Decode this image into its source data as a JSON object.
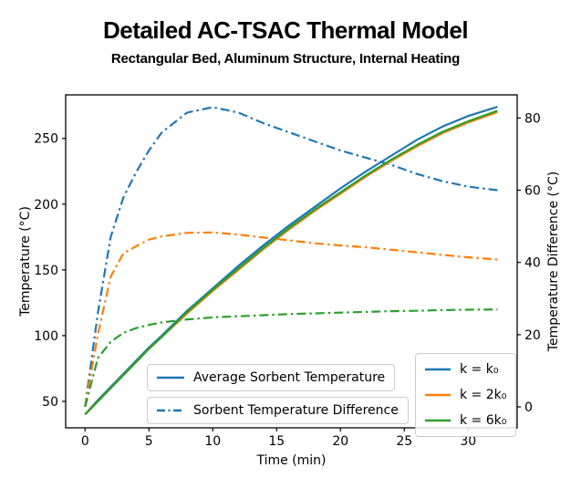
{
  "title": "Detailed AC-TSAC Thermal Model",
  "subtitle": "Rectangular Bed, Aluminum Structure, Internal Heating",
  "colors": {
    "k0": "#1f77b4",
    "k2": "#ff7f0e",
    "k6": "#2ca02c",
    "legend_edge": "#cccccc",
    "axis": "#000000"
  },
  "legend_style": {
    "entries": [
      {
        "label": "Average Sorbent Temperature",
        "line_style": "solid",
        "color": "#1f77b4"
      },
      {
        "label": "Sorbent Temperature Difference",
        "line_style": "dashdot",
        "color": "#1f77b4"
      }
    ]
  },
  "legend_k": {
    "entries": [
      {
        "label": "k = k₀",
        "color": "#1f77b4"
      },
      {
        "label": "k = 2k₀",
        "color": "#ff7f0e"
      },
      {
        "label": "k = 6k₀",
        "color": "#2ca02c"
      }
    ]
  },
  "chart_data": {
    "type": "line",
    "title": "Detailed AC-TSAC Thermal Model",
    "subtitle": "Rectangular Bed, Aluminum Structure, Internal Heating",
    "xlabel": "Time (min)",
    "ylabel_left": "Temperature (°C)",
    "ylabel_right": "Temperature Difference (°C)",
    "xticks": [
      0,
      5,
      10,
      15,
      20,
      25,
      30
    ],
    "yticks_left": [
      50,
      100,
      150,
      200,
      250
    ],
    "yticks_right": [
      0,
      20,
      40,
      60,
      80
    ],
    "xlim": [
      -1.52,
      33.84
    ],
    "ylim_left": [
      29.9,
      283.1
    ],
    "ylim_right": [
      -5.8,
      86.4
    ],
    "grid": false,
    "x": [
      0,
      1,
      2,
      3,
      4,
      5,
      6,
      8,
      10,
      12,
      14,
      16,
      18,
      20,
      22,
      24,
      26,
      28,
      30,
      32.3
    ],
    "series": [
      {
        "name": "Average Sorbent Temperature",
        "k": "k = k₀",
        "axis": "left",
        "line_style": "solid",
        "color": "#1f77b4",
        "values": [
          40,
          51,
          61,
          71,
          81,
          91,
          100,
          119,
          136,
          153,
          169,
          184,
          198,
          212,
          225,
          237,
          249,
          259,
          267,
          274
        ]
      },
      {
        "name": "Average Sorbent Temperature",
        "k": "k = 2k₀",
        "axis": "left",
        "line_style": "solid",
        "color": "#ff7f0e",
        "values": [
          40,
          50,
          60,
          70,
          80,
          90,
          99,
          117,
          134,
          150,
          166,
          181,
          195,
          208,
          221,
          233,
          244,
          254,
          262,
          270
        ]
      },
      {
        "name": "Average Sorbent Temperature",
        "k": "k = 6k₀",
        "axis": "left",
        "line_style": "solid",
        "color": "#2ca02c",
        "values": [
          40,
          50,
          60,
          70,
          80,
          90,
          99,
          118,
          135,
          151,
          167,
          182,
          196,
          209,
          222,
          234,
          245,
          255,
          263,
          271
        ]
      },
      {
        "name": "Sorbent Temperature Difference",
        "k": "k = k₀",
        "axis": "right",
        "line_style": "dashdot",
        "color": "#1f77b4",
        "values": [
          0,
          26,
          47,
          58,
          65,
          71,
          76,
          81.5,
          83,
          81.5,
          78.5,
          76,
          73.5,
          71,
          69,
          67,
          64.5,
          62.5,
          61,
          60
        ]
      },
      {
        "name": "Sorbent Temperature Difference",
        "k": "k = 2k₀",
        "axis": "right",
        "line_style": "dashdot",
        "color": "#ff7f0e",
        "values": [
          0,
          20,
          36,
          42.5,
          44.5,
          46.3,
          47.2,
          48.2,
          48.3,
          47.7,
          46.9,
          46.1,
          45.3,
          44.7,
          44.2,
          43.5,
          42.8,
          42.1,
          41.4,
          40.8
        ]
      },
      {
        "name": "Sorbent Temperature Difference",
        "k": "k = 6k₀",
        "axis": "right",
        "line_style": "dashdot",
        "color": "#2ca02c",
        "values": [
          0,
          13.5,
          18,
          20.5,
          21.8,
          22.7,
          23.4,
          24.2,
          24.8,
          25.1,
          25.4,
          25.7,
          25.9,
          26.1,
          26.3,
          26.5,
          26.6,
          26.8,
          26.9,
          27
        ]
      }
    ],
    "legend_position": [
      "lower center inside axes",
      "lower right inside axes"
    ]
  }
}
